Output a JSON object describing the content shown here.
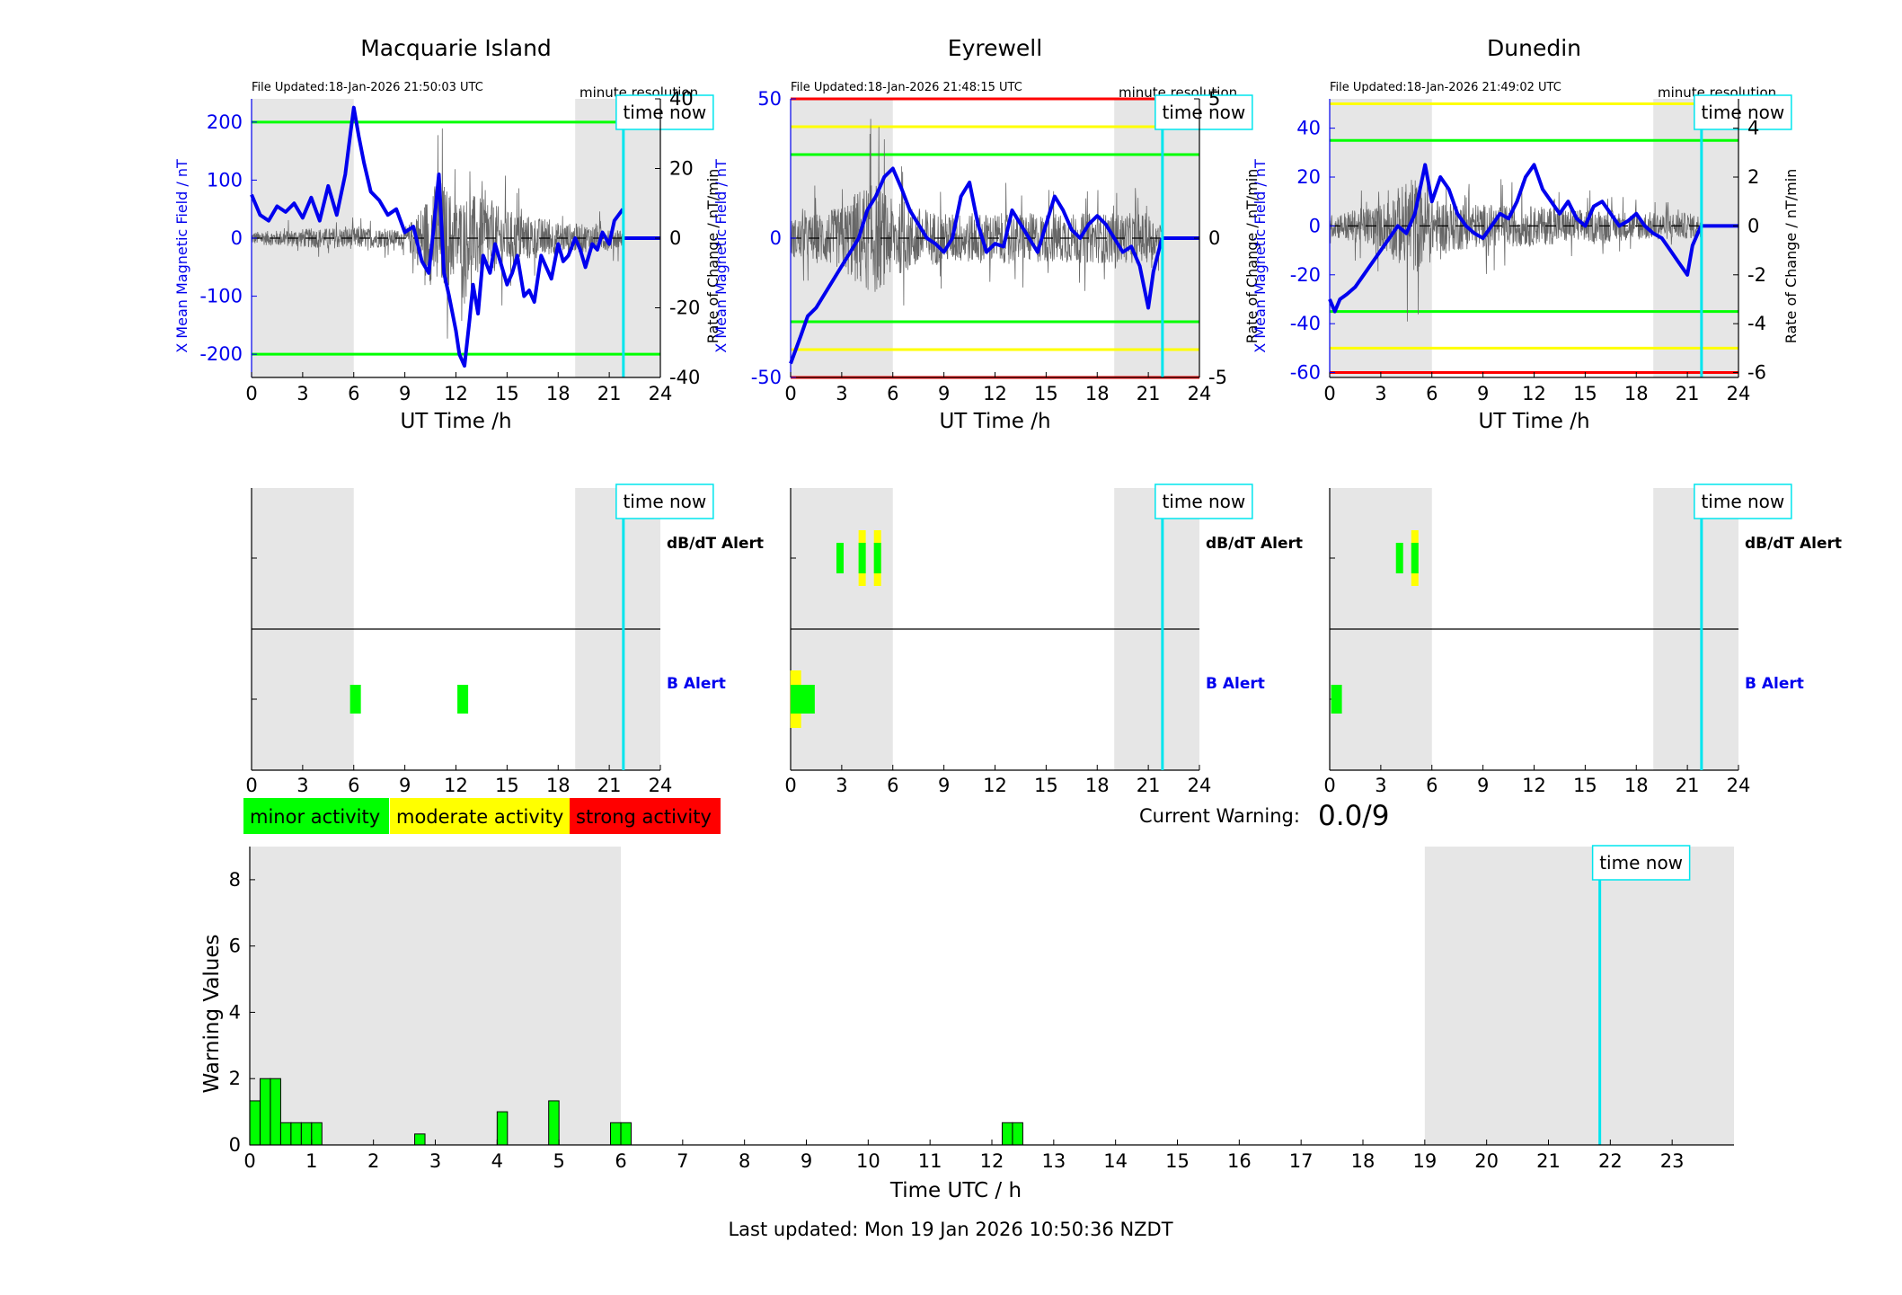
{
  "colors": {
    "magnetic": "#0000ee",
    "minor": "#00ff00",
    "moderate": "#ffff00",
    "strong": "#ff0000",
    "time_now": "#00e5ee",
    "night_shade": "#e6e6e6",
    "rate": "#666666"
  },
  "labels": {
    "time_now": "time now",
    "minute_resolution": "minute resolution",
    "ut_time": "UT Time /h",
    "y_left": "X Mean Magnetic Field / nT",
    "y_right": "Rate of Change / nT/min",
    "dbdt_alert": "dB/dT Alert",
    "b_alert": "B Alert",
    "current_warning_label": "Current Warning:",
    "current_warning_value": "0.0/9",
    "legend_minor": "minor activity",
    "legend_moderate": "moderate activity",
    "legend_strong": "strong activity",
    "warning_values": "Warning Values",
    "time_utc": "Time UTC / h",
    "last_updated": "Last updated: Mon 19 Jan 2026 10:50:36 NZDT"
  },
  "chart_data": [
    {
      "type": "line",
      "title": "Macquarie Island",
      "file_updated": "File Updated:18-Jan-2026 21:50:03 UTC",
      "xlabel": "UT Time /h",
      "ylabel": "X Mean Magnetic Field / nT",
      "y2label": "Rate of Change / nT/min",
      "xlim": [
        0,
        24
      ],
      "xticks": [
        "0",
        "3",
        "6",
        "9",
        "12",
        "15",
        "18",
        "21",
        "24"
      ],
      "ylim": [
        -240,
        240
      ],
      "yticks": [
        -200,
        -100,
        0,
        100,
        200
      ],
      "y2lim": [
        -40,
        40
      ],
      "y2ticks": [
        -40,
        -20,
        0,
        20,
        40
      ],
      "thresholds": [
        {
          "value": 200,
          "level": "minor"
        },
        {
          "value": -200,
          "level": "minor"
        }
      ],
      "night_shading": [
        [
          0,
          6
        ],
        [
          19,
          24
        ]
      ],
      "time_now": 21.83,
      "x_mean_field": {
        "x": [
          0,
          0.5,
          1,
          1.5,
          2,
          2.5,
          3,
          3.5,
          4,
          4.5,
          5,
          5.5,
          5.8,
          6,
          6.3,
          6.6,
          7,
          7.5,
          8,
          8.5,
          9,
          9.5,
          10,
          10.4,
          10.7,
          11,
          11.3,
          11.6,
          12,
          12.2,
          12.5,
          12.8,
          13,
          13.3,
          13.6,
          14,
          14.3,
          14.6,
          15,
          15.3,
          15.6,
          16,
          16.3,
          16.6,
          17,
          17.3,
          17.6,
          18,
          18.3,
          18.6,
          19,
          19.3,
          19.6,
          20,
          20.3,
          20.6,
          21,
          21.3,
          21.8
        ],
        "y": [
          75,
          40,
          30,
          55,
          45,
          60,
          35,
          70,
          30,
          90,
          40,
          110,
          180,
          225,
          175,
          130,
          80,
          65,
          40,
          50,
          10,
          20,
          -40,
          -60,
          20,
          110,
          -60,
          -100,
          -160,
          -200,
          -220,
          -140,
          -80,
          -130,
          -30,
          -60,
          -10,
          -40,
          -80,
          -60,
          -30,
          -100,
          -90,
          -110,
          -30,
          -50,
          -70,
          -10,
          -40,
          -30,
          0,
          -20,
          -50,
          -10,
          -20,
          10,
          -10,
          30,
          50
        ]
      },
      "rate_envelope": [
        [
          0,
          4
        ],
        [
          3,
          6
        ],
        [
          6,
          7
        ],
        [
          9,
          5
        ],
        [
          10.5,
          30
        ],
        [
          11,
          40
        ],
        [
          12,
          25
        ],
        [
          13,
          28
        ],
        [
          15,
          18
        ],
        [
          18,
          10
        ],
        [
          21,
          8
        ],
        [
          21.8,
          6
        ]
      ],
      "flat_after_now": 0
    },
    {
      "type": "line",
      "title": "Eyrewell",
      "file_updated": "File Updated:18-Jan-2026 21:48:15 UTC",
      "xlabel": "UT Time /h",
      "ylabel": "X Mean Magnetic Field / nT",
      "y2label": "Rate of Change / nT/min",
      "xlim": [
        0,
        24
      ],
      "xticks": [
        "0",
        "3",
        "6",
        "9",
        "12",
        "15",
        "18",
        "21",
        "24"
      ],
      "ylim": [
        -50,
        50
      ],
      "yticks": [
        -50,
        0,
        50
      ],
      "y2lim": [
        -5,
        5
      ],
      "y2ticks": [
        -5,
        0,
        5
      ],
      "thresholds": [
        {
          "value": 50,
          "level": "strong"
        },
        {
          "value": 40,
          "level": "moderate"
        },
        {
          "value": 30,
          "level": "minor"
        },
        {
          "value": -30,
          "level": "minor"
        },
        {
          "value": -40,
          "level": "moderate"
        },
        {
          "value": -50,
          "level": "strong"
        }
      ],
      "night_shading": [
        [
          0,
          6
        ],
        [
          19,
          24
        ]
      ],
      "time_now": 21.83,
      "x_mean_field": {
        "x": [
          0,
          0.3,
          0.6,
          1,
          1.5,
          2,
          2.5,
          3,
          3.5,
          4,
          4.5,
          5,
          5.5,
          6,
          6.5,
          7,
          7.5,
          8,
          8.5,
          9,
          9.5,
          10,
          10.5,
          11,
          11.5,
          12,
          12.5,
          13,
          13.5,
          14,
          14.5,
          15,
          15.5,
          16,
          16.5,
          17,
          17.5,
          18,
          18.5,
          19,
          19.5,
          20,
          20.5,
          21,
          21.3,
          21.8
        ],
        "y": [
          -45,
          -40,
          -35,
          -28,
          -25,
          -20,
          -15,
          -10,
          -5,
          0,
          10,
          15,
          22,
          25,
          18,
          10,
          5,
          0,
          -2,
          -5,
          0,
          15,
          20,
          5,
          -5,
          -2,
          -3,
          10,
          5,
          0,
          -5,
          5,
          15,
          10,
          3,
          0,
          5,
          8,
          5,
          0,
          -5,
          -3,
          -10,
          -25,
          -12,
          0
        ]
      },
      "rate_envelope": [
        [
          0,
          1.5
        ],
        [
          3,
          2.5
        ],
        [
          4,
          4
        ],
        [
          5,
          4.5
        ],
        [
          6,
          3
        ],
        [
          9,
          2
        ],
        [
          12,
          2
        ],
        [
          15,
          2
        ],
        [
          18,
          2
        ],
        [
          21,
          2
        ],
        [
          21.8,
          1
        ]
      ],
      "flat_after_now": 0
    },
    {
      "type": "line",
      "title": "Dunedin",
      "file_updated": "File Updated:18-Jan-2026 21:49:02 UTC",
      "xlabel": "UT Time /h",
      "ylabel": "X Mean Magnetic Field / nT",
      "y2label": "Rate of Change / nT/min",
      "xlim": [
        0,
        24
      ],
      "xticks": [
        "0",
        "3",
        "6",
        "9",
        "12",
        "15",
        "18",
        "21",
        "24"
      ],
      "ylim": [
        -62,
        52
      ],
      "yticks": [
        -60,
        -40,
        -20,
        0,
        20,
        40
      ],
      "y2lim": [
        -6.2,
        5.2
      ],
      "y2ticks": [
        -6,
        -4,
        -2,
        0,
        2,
        4
      ],
      "thresholds": [
        {
          "value": 50,
          "level": "moderate"
        },
        {
          "value": 35,
          "level": "minor"
        },
        {
          "value": -35,
          "level": "minor"
        },
        {
          "value": -50,
          "level": "moderate"
        },
        {
          "value": -60,
          "level": "strong"
        }
      ],
      "night_shading": [
        [
          0,
          6
        ],
        [
          19,
          24
        ]
      ],
      "time_now": 21.83,
      "x_mean_field": {
        "x": [
          0,
          0.3,
          0.6,
          1,
          1.5,
          2,
          2.5,
          3,
          3.5,
          4,
          4.5,
          5,
          5.3,
          5.6,
          6,
          6.5,
          7,
          7.5,
          8,
          8.5,
          9,
          9.5,
          10,
          10.5,
          11,
          11.5,
          12,
          12.5,
          13,
          13.5,
          14,
          14.5,
          15,
          15.5,
          16,
          16.5,
          17,
          17.5,
          18,
          18.5,
          19,
          19.5,
          20,
          20.5,
          21,
          21.3,
          21.8
        ],
        "y": [
          -30,
          -35,
          -30,
          -28,
          -25,
          -20,
          -15,
          -10,
          -5,
          0,
          -3,
          5,
          15,
          25,
          10,
          20,
          15,
          5,
          0,
          -3,
          -5,
          0,
          5,
          3,
          10,
          20,
          25,
          15,
          10,
          5,
          10,
          3,
          0,
          8,
          10,
          5,
          0,
          2,
          5,
          0,
          -3,
          -5,
          -10,
          -15,
          -20,
          -8,
          0
        ]
      },
      "rate_envelope": [
        [
          0,
          1
        ],
        [
          3,
          2
        ],
        [
          4,
          3.5
        ],
        [
          5,
          4.5
        ],
        [
          6,
          2.5
        ],
        [
          9,
          2
        ],
        [
          12,
          1.8
        ],
        [
          15,
          1.5
        ],
        [
          18,
          1.3
        ],
        [
          21,
          1.2
        ],
        [
          21.8,
          1
        ]
      ],
      "flat_after_now": 0
    }
  ],
  "alert_panels": [
    {
      "station": "Macquarie Island",
      "dbdt_alert": [],
      "b_alert": [
        {
          "x": 6.1,
          "level": "minor"
        },
        {
          "x": 12.4,
          "level": "minor"
        }
      ]
    },
    {
      "station": "Eyrewell",
      "dbdt_alert": [
        {
          "x": 2.9,
          "level": "minor"
        },
        {
          "x": 4.2,
          "level": "moderate"
        },
        {
          "x": 5.1,
          "level": "moderate"
        }
      ],
      "b_alert": [
        {
          "x": 0.3,
          "level": "moderate"
        },
        {
          "x": 1.1,
          "level": "minor"
        }
      ]
    },
    {
      "station": "Dunedin",
      "dbdt_alert": [
        {
          "x": 4.1,
          "level": "minor"
        },
        {
          "x": 5.0,
          "level": "moderate"
        }
      ],
      "b_alert": [
        {
          "x": 0.4,
          "level": "minor"
        }
      ]
    }
  ],
  "warning_chart": {
    "type": "bar",
    "xlabel": "Time UTC / h",
    "ylabel": "Warning Values",
    "xlim": [
      0,
      24
    ],
    "xticks": [
      "0",
      "1",
      "2",
      "3",
      "4",
      "5",
      "6",
      "7",
      "8",
      "9",
      "10",
      "11",
      "12",
      "13",
      "14",
      "15",
      "16",
      "17",
      "18",
      "19",
      "20",
      "21",
      "22",
      "23"
    ],
    "ylim": [
      0,
      9
    ],
    "yticks": [
      0,
      2,
      4,
      6,
      8
    ],
    "night_shading": [
      [
        0,
        6
      ],
      [
        19,
        24
      ]
    ],
    "time_now": 21.83,
    "bin_width": 0.1667,
    "bars": [
      {
        "x": 0.0,
        "value": 1.33
      },
      {
        "x": 0.1667,
        "value": 2
      },
      {
        "x": 0.3333,
        "value": 2
      },
      {
        "x": 0.5,
        "value": 0.67
      },
      {
        "x": 0.6667,
        "value": 0.67
      },
      {
        "x": 0.8333,
        "value": 0.67
      },
      {
        "x": 1.0,
        "value": 0.67
      },
      {
        "x": 2.6667,
        "value": 0.33
      },
      {
        "x": 4.0,
        "value": 1
      },
      {
        "x": 4.8333,
        "value": 1.33
      },
      {
        "x": 5.8333,
        "value": 0.67
      },
      {
        "x": 6.0,
        "value": 0.67
      },
      {
        "x": 12.1667,
        "value": 0.67
      },
      {
        "x": 12.3333,
        "value": 0.67
      }
    ]
  }
}
